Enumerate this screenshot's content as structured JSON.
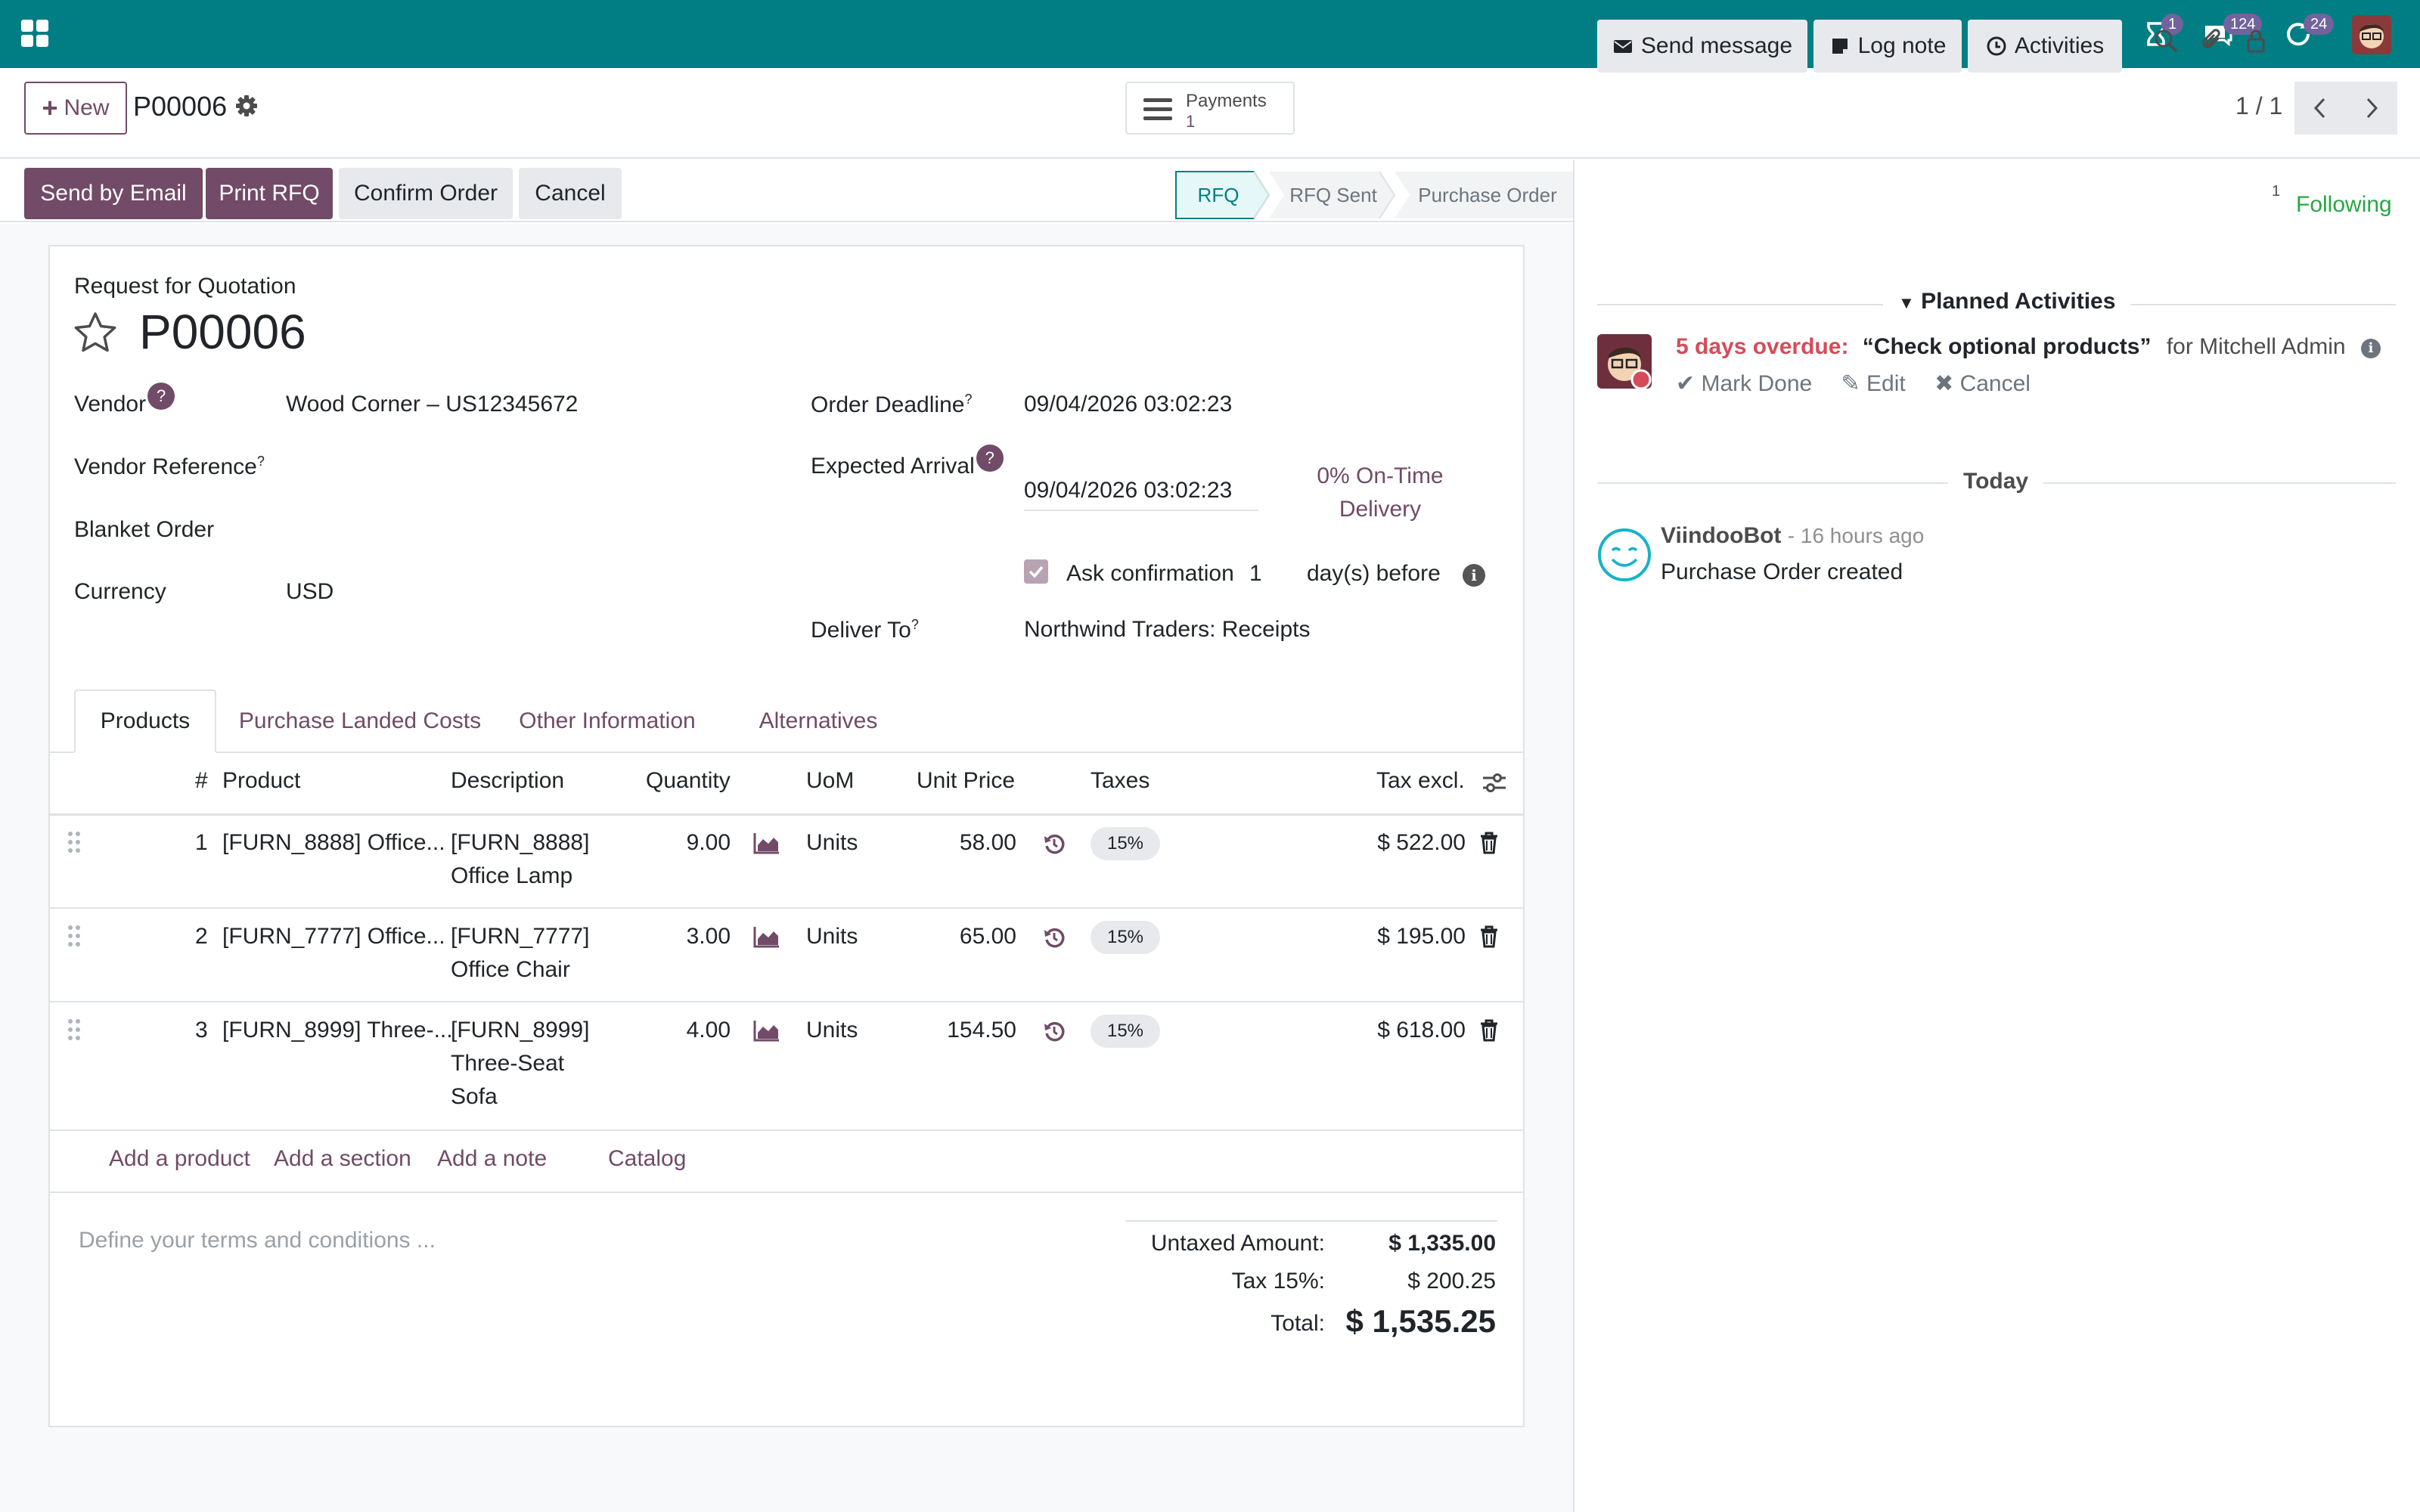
{
  "topbar": {
    "badges": {
      "activities": "1",
      "messages": "124",
      "updates": "24"
    },
    "icons": [
      "apps-grid-icon",
      "record-dot-icon",
      "droplet-icon",
      "hourglass-icon",
      "chat-icon",
      "refresh-icon"
    ]
  },
  "control": {
    "new_label": "New",
    "record_name": "P00006",
    "payments_label": "Payments",
    "payments_count": "1",
    "pager": "1 / 1"
  },
  "status": {
    "buttons": [
      "Send by Email",
      "Print RFQ",
      "Confirm Order",
      "Cancel"
    ],
    "stages": [
      "RFQ",
      "RFQ Sent",
      "Purchase Order"
    ],
    "active_stage": "RFQ"
  },
  "form": {
    "doc_type": "Request for Quotation",
    "number": "P00006",
    "vendor_label": "Vendor",
    "vendor_value": "Wood Corner – US12345672",
    "vendor_ref_label": "Vendor Reference",
    "blanket_label": "Blanket Order",
    "currency_label": "Currency",
    "currency_value": "USD",
    "deadline_label": "Order Deadline",
    "deadline_value": "09/04/2026 03:02:23",
    "arrival_label": "Expected Arrival",
    "arrival_value": "09/04/2026 03:02:23",
    "ontime_line1": "0% On-Time",
    "ontime_line2": "Delivery",
    "ask_confirm_label": "Ask confirmation",
    "ask_confirm_days": "1",
    "ask_confirm_suffix": "day(s) before",
    "deliver_label": "Deliver To",
    "deliver_value": "Northwind Traders: Receipts",
    "help_mark": "?"
  },
  "tabs": [
    "Products",
    "Purchase Landed Costs",
    "Other Information",
    "Alternatives"
  ],
  "table": {
    "headers": [
      "#",
      "Product",
      "Description",
      "Quantity",
      "UoM",
      "Unit Price",
      "Taxes",
      "Tax excl."
    ],
    "rows": [
      {
        "num": "1",
        "product": "[FURN_8888] Office...",
        "desc1": "[FURN_8888]",
        "desc2": "Office Lamp",
        "desc3": "",
        "qty": "9.00",
        "uom": "Units",
        "price": "58.00",
        "tax": "15%",
        "subtotal": "$ 522.00"
      },
      {
        "num": "2",
        "product": "[FURN_7777] Office...",
        "desc1": "[FURN_7777]",
        "desc2": "Office Chair",
        "desc3": "",
        "qty": "3.00",
        "uom": "Units",
        "price": "65.00",
        "tax": "15%",
        "subtotal": "$ 195.00"
      },
      {
        "num": "3",
        "product": "[FURN_8999] Three-...",
        "desc1": "[FURN_8999]",
        "desc2": "Three-Seat",
        "desc3": "Sofa",
        "qty": "4.00",
        "uom": "Units",
        "price": "154.50",
        "tax": "15%",
        "subtotal": "$ 618.00"
      }
    ],
    "add_links": [
      "Add a product",
      "Add a section",
      "Add a note",
      "Catalog"
    ]
  },
  "terms_placeholder": "Define your terms and conditions ...",
  "totals": {
    "untaxed_label": "Untaxed Amount:",
    "untaxed_value": "$ 1,335.00",
    "tax_label": "Tax 15%:",
    "tax_value": "$ 200.25",
    "total_label": "Total:",
    "total_value": "$ 1,535.25"
  },
  "chatter": {
    "send_message": "Send message",
    "log_note": "Log note",
    "activities": "Activities",
    "followers_count": "1",
    "following": "Following",
    "planned_header": "Planned Activities",
    "activity": {
      "overdue": "5 days overdue:",
      "summary": "“Check optional products”",
      "assignee": "for Mitchell Admin",
      "mark_done": "Mark Done",
      "edit": "Edit",
      "cancel": "Cancel"
    },
    "today_label": "Today",
    "message": {
      "author": "ViindooBot",
      "time": "- 16 hours ago",
      "body": "Purchase Order created"
    }
  },
  "colors": {
    "topbar": "#017e84",
    "primary": "#714b67",
    "overdue": "#d44c59",
    "following": "#28a745"
  }
}
